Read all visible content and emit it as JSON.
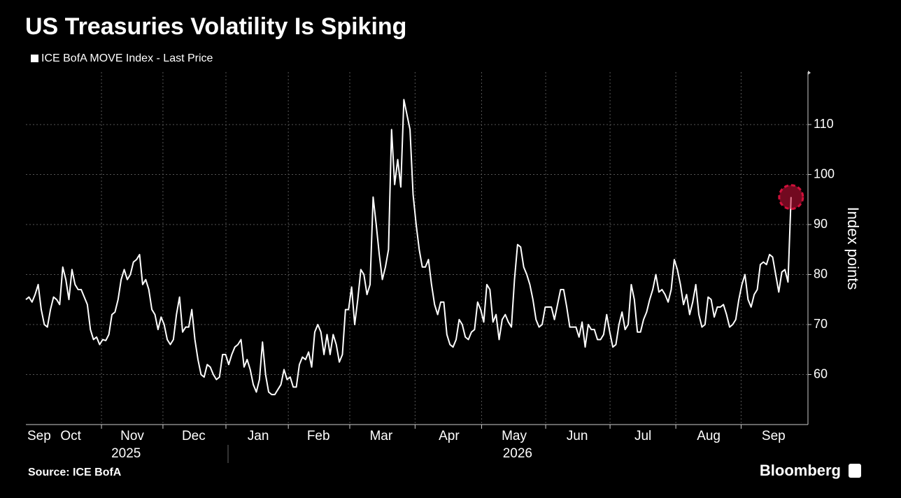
{
  "chart_data": {
    "type": "line",
    "title": "US Treasuries Volatility Is Spiking",
    "ylabel": "Index points",
    "source": "Source: ICE BofA",
    "brand": "Bloomberg",
    "series": [
      {
        "name": "ICE BofA MOVE Index - Last Price",
        "color": "#ffffff",
        "values": [
          75,
          75.5,
          74.5,
          76,
          78,
          73,
          70,
          69.5,
          73,
          75.5,
          75,
          74,
          81.5,
          79,
          75,
          81,
          78,
          77,
          77,
          75.5,
          74,
          69,
          67,
          67.5,
          66,
          67,
          66.8,
          68,
          72,
          72.5,
          75,
          79,
          81,
          79,
          80,
          82.5,
          83,
          84,
          78,
          79,
          77,
          73,
          72,
          69,
          71.5,
          70,
          67,
          66,
          67,
          72,
          75.5,
          68.5,
          69.5,
          69.5,
          73,
          67,
          63,
          60,
          59.5,
          62,
          61.5,
          60,
          59,
          59.5,
          64,
          64,
          62,
          64,
          65.5,
          66,
          67,
          61.5,
          63,
          61,
          58,
          56.5,
          59,
          66.5,
          60,
          56.5,
          56,
          56,
          57,
          58,
          61,
          59,
          59.5,
          57.5,
          57.5,
          62,
          63.5,
          63,
          64.5,
          61.5,
          68.5,
          70,
          68.5,
          64,
          68,
          64,
          68,
          66,
          62.5,
          64,
          73,
          73,
          77.5,
          70,
          75,
          81,
          80,
          76,
          78,
          95.5,
          90,
          84,
          79,
          81.5,
          85,
          109,
          98,
          103,
          97.5,
          115,
          112,
          109,
          96,
          90,
          85,
          81.5,
          81.5,
          83,
          78,
          74,
          72,
          74.5,
          74.5,
          68,
          66,
          65.5,
          67,
          71,
          70,
          67.5,
          67,
          68.5,
          69,
          74.5,
          73,
          70.5,
          78,
          77,
          70.5,
          72,
          67,
          71,
          72,
          70.5,
          69.5,
          79,
          86,
          85.5,
          81.5,
          80,
          78,
          75,
          71,
          69.5,
          70,
          73.5,
          73.5,
          73.5,
          71,
          74,
          77,
          77,
          73.5,
          69.5,
          69.5,
          69.5,
          67.5,
          70.5,
          65.5,
          70,
          69,
          69,
          67,
          67,
          68,
          72,
          68.5,
          65.5,
          66,
          70,
          72.5,
          69,
          70,
          78,
          75,
          68.5,
          68.5,
          71,
          72.5,
          75,
          77,
          80,
          76.5,
          77,
          76,
          74.5,
          77,
          83,
          81,
          78,
          74,
          76,
          72,
          74.5,
          78,
          72,
          69.5,
          70,
          75.5,
          75,
          71.5,
          73.5,
          73.5,
          74,
          72,
          69.5,
          70,
          71,
          75,
          78,
          80,
          75,
          73.5,
          76,
          77,
          82,
          82.5,
          82,
          84,
          83.5,
          80,
          76.5,
          80.5,
          81,
          78.5,
          95.5
        ]
      }
    ],
    "xlim": [
      0,
      254.5
    ],
    "xticks": [
      {
        "value": 4.3,
        "label": "Sep"
      },
      {
        "value": 14.6,
        "label": "Oct"
      },
      {
        "value": 34.6,
        "label": "Nov"
      },
      {
        "value": 54.6,
        "label": "Dec"
      },
      {
        "value": 75.6,
        "label": "Jan"
      },
      {
        "value": 95.2,
        "label": "Feb"
      },
      {
        "value": 115.6,
        "label": "Mar"
      },
      {
        "value": 137.7,
        "label": "Apr"
      },
      {
        "value": 158.9,
        "label": "May"
      },
      {
        "value": 179.4,
        "label": "Jun"
      },
      {
        "value": 200.8,
        "label": "Jul"
      },
      {
        "value": 222.2,
        "label": "Aug"
      },
      {
        "value": 243.3,
        "label": "Sep"
      }
    ],
    "year_labels": [
      {
        "value": 32.6,
        "label": "2025"
      },
      {
        "value": 160,
        "label": "2026"
      }
    ],
    "ylim": [
      50,
      120.5
    ],
    "yticks": [
      60,
      70,
      80,
      90,
      100,
      110
    ],
    "grid": true,
    "highlight_color": "#d0103a"
  }
}
